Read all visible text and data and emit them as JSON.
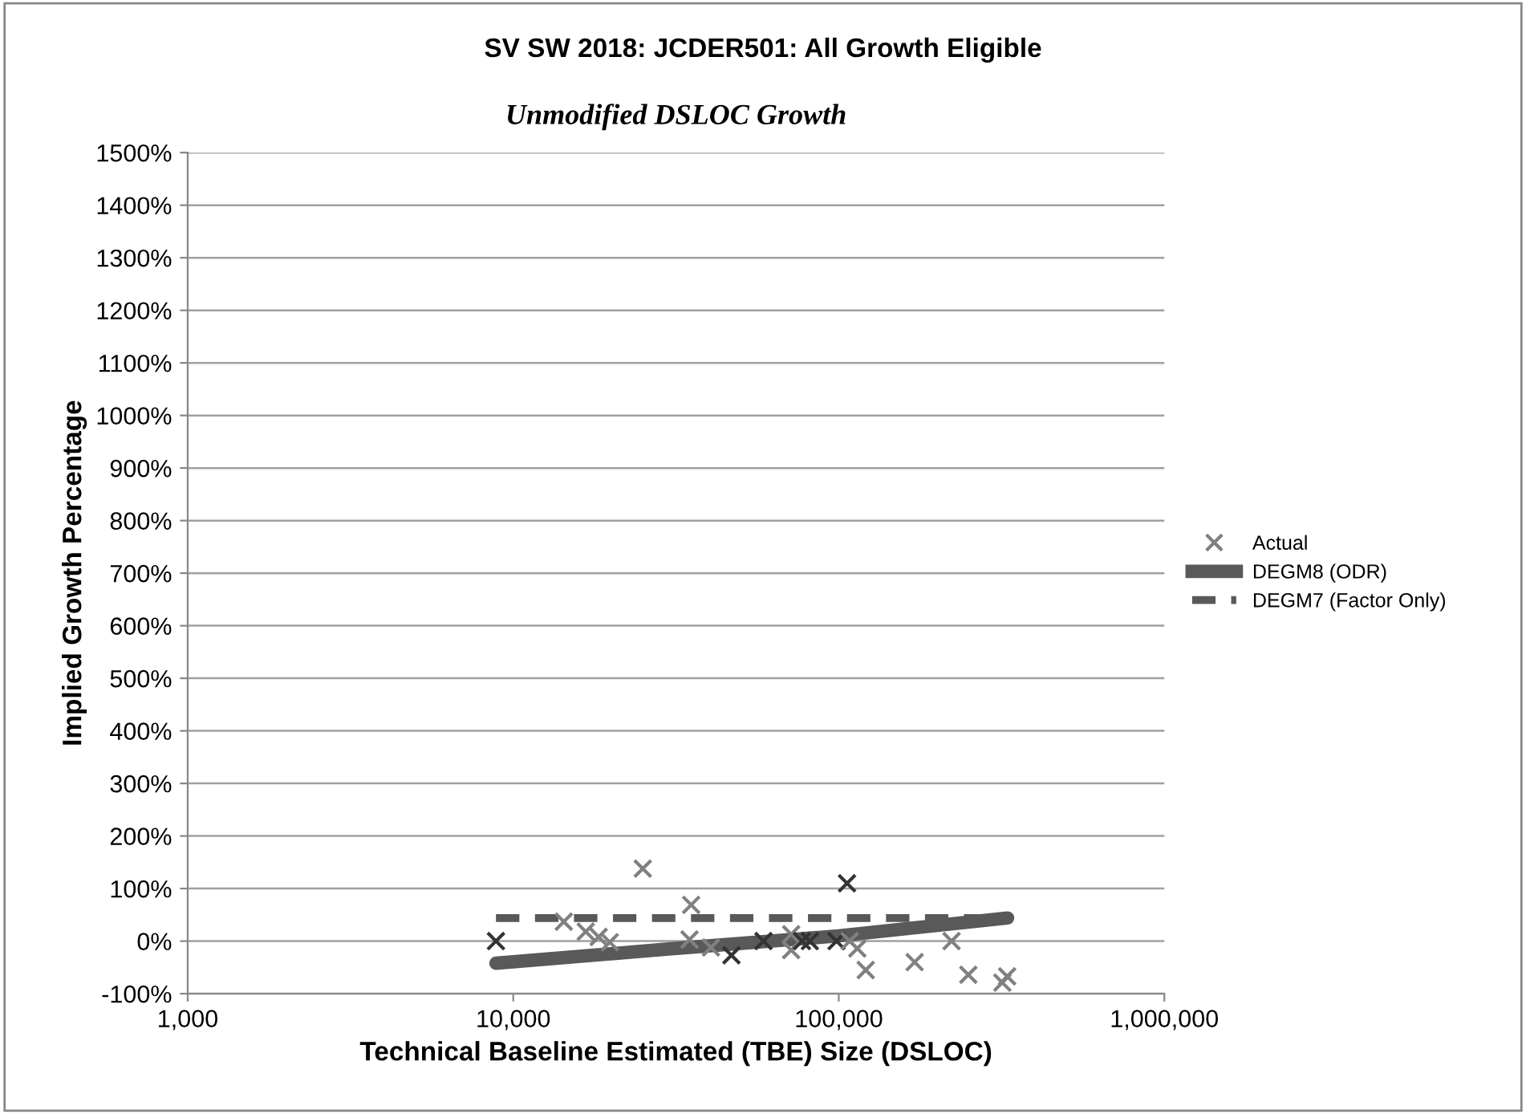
{
  "chart_data": {
    "type": "scatter",
    "title": "SV SW 2018: JCDER501: All Growth Eligible",
    "subtitle": "Unmodified DSLOC Growth",
    "xlabel": "Technical Baseline Estimated (TBE) Size (DSLOC)",
    "ylabel": "Implied Growth Percentage",
    "log": "x",
    "xlim": [
      1000,
      1000000
    ],
    "xticks": [
      {
        "value": 1000,
        "label": "1,000"
      },
      {
        "value": 10000,
        "label": "10,000"
      },
      {
        "value": 100000,
        "label": "100,000"
      },
      {
        "value": 1000000,
        "label": "1,000,000"
      }
    ],
    "ylim": [
      -100,
      1500
    ],
    "yticks": [
      {
        "value": -100,
        "label": "-100%"
      },
      {
        "value": 0,
        "label": "0%"
      },
      {
        "value": 100,
        "label": "100%"
      },
      {
        "value": 200,
        "label": "200%"
      },
      {
        "value": 300,
        "label": "300%"
      },
      {
        "value": 400,
        "label": "400%"
      },
      {
        "value": 500,
        "label": "500%"
      },
      {
        "value": 600,
        "label": "600%"
      },
      {
        "value": 700,
        "label": "700%"
      },
      {
        "value": 800,
        "label": "800%"
      },
      {
        "value": 900,
        "label": "900%"
      },
      {
        "value": 1000,
        "label": "1000%"
      },
      {
        "value": 1100,
        "label": "1100%"
      },
      {
        "value": 1200,
        "label": "1200%"
      },
      {
        "value": 1300,
        "label": "1300%"
      },
      {
        "value": 1400,
        "label": "1400%"
      },
      {
        "value": 1500,
        "label": "1500%"
      }
    ],
    "grid": "y",
    "legend": "right",
    "series": [
      {
        "name": "Actual",
        "marker": "cross",
        "color": "#808080",
        "x": [
          8850,
          25000,
          35200,
          106000,
          14300,
          16700,
          18300,
          19800,
          34800,
          40500,
          46800,
          58700,
          71400,
          71400,
          77100,
          81500,
          98400,
          108000,
          114000,
          121000,
          171000,
          222000,
          250000,
          318000,
          329000
        ],
        "values": [
          0,
          138,
          69,
          110,
          37,
          18,
          8,
          -2,
          3,
          -12,
          -27,
          0,
          13,
          -17,
          0,
          0,
          0,
          0,
          -14,
          -55,
          -40,
          0,
          -64,
          -79,
          -67
        ],
        "colors": [
          "#333333",
          "#808080",
          "#808080",
          "#333333",
          "#808080",
          "#808080",
          "#808080",
          "#808080",
          "#808080",
          "#808080",
          "#333333",
          "#333333",
          "#808080",
          "#808080",
          "#333333",
          "#333333",
          "#333333",
          "#808080",
          "#808080",
          "#808080",
          "#808080",
          "#808080",
          "#808080",
          "#808080",
          "#808080"
        ]
      },
      {
        "name": "DEGM8 (ODR)",
        "type": "line",
        "line_style": "solid",
        "color": "#595959",
        "x": [
          8850,
          30000,
          100000,
          330000
        ],
        "values": [
          -42,
          -15,
          10,
          44
        ]
      },
      {
        "name": "DEGM7 (Factor Only)",
        "type": "line",
        "line_style": "dashed",
        "color": "#595959",
        "x": [
          8850,
          330000
        ],
        "values": [
          44,
          44
        ]
      }
    ]
  }
}
